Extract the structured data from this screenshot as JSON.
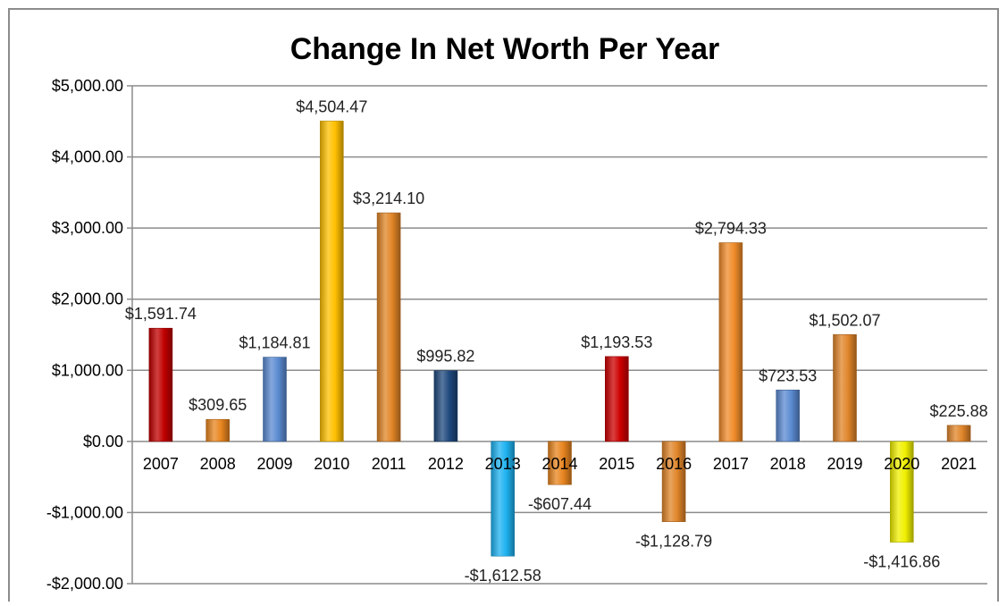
{
  "chart_data": {
    "type": "bar",
    "title": "Change In Net Worth Per Year",
    "xlabel": "",
    "ylabel": "",
    "ylim": [
      -2000,
      5000
    ],
    "y_ticks": [
      5000,
      4000,
      3000,
      2000,
      1000,
      0,
      -1000,
      -2000
    ],
    "y_tick_labels": [
      "$5,000.00",
      "$4,000.00",
      "$3,000.00",
      "$2,000.00",
      "$1,000.00",
      "$0.00",
      "-$1,000.00",
      "-$2,000.00"
    ],
    "grid": true,
    "legend": "none",
    "categories": [
      "2007",
      "2008",
      "2009",
      "2010",
      "2011",
      "2012",
      "2013",
      "2014",
      "2015",
      "2016",
      "2017",
      "2018",
      "2019",
      "2020",
      "2021"
    ],
    "values": [
      1591.74,
      309.65,
      1184.81,
      4504.47,
      3214.1,
      995.82,
      -1612.58,
      -607.44,
      1193.53,
      -1128.79,
      2794.33,
      723.53,
      1502.07,
      -1416.86,
      225.88
    ],
    "data_labels": [
      "$1,591.74",
      "$309.65",
      "$1,184.81",
      "$4,504.47",
      "$3,214.10",
      "$995.82",
      "-$1,612.58",
      "-$607.44",
      "$1,193.53",
      "-$1,128.79",
      "$2,794.33",
      "$723.53",
      "$1,502.07",
      "-$1,416.86",
      "$225.88"
    ],
    "bar_colors": [
      "#c00000",
      "#e8851f",
      "#5b8bd1",
      "#ffc000",
      "#e08526",
      "#1f497d",
      "#1eb2f0",
      "#e8851f",
      "#cc0000",
      "#e0852a",
      "#f08c2a",
      "#5b8bd1",
      "#e0852a",
      "#f0f000",
      "#e0852a"
    ]
  }
}
